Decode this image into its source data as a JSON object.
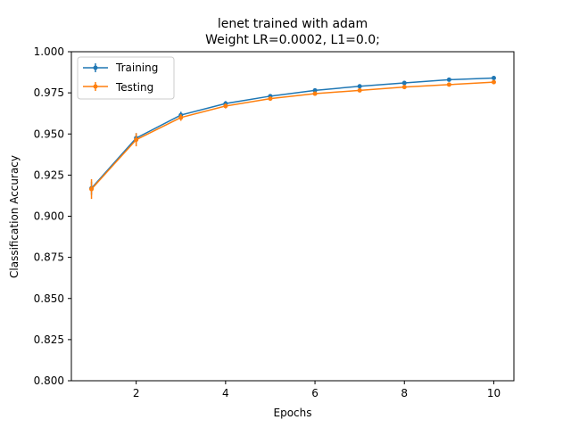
{
  "chart_data": {
    "type": "line",
    "title_line1": "lenet trained with adam",
    "title_line2": "Weight LR=0.0002, L1=0.0;",
    "xlabel": "Epochs",
    "ylabel": "Classification Accuracy",
    "xlim": [
      0.55,
      10.45
    ],
    "ylim": [
      0.8,
      1.0
    ],
    "xticks": [
      2,
      4,
      6,
      8,
      10
    ],
    "xtick_labels": [
      "2",
      "4",
      "6",
      "8",
      "10"
    ],
    "yticks": [
      0.8,
      0.825,
      0.85,
      0.875,
      0.9,
      0.925,
      0.95,
      0.975,
      1.0
    ],
    "ytick_labels": [
      "0.800",
      "0.825",
      "0.850",
      "0.875",
      "0.900",
      "0.925",
      "0.950",
      "0.975",
      "1.000"
    ],
    "grid": false,
    "legend_position": "upper-left",
    "x": [
      1,
      2,
      3,
      4,
      5,
      6,
      7,
      8,
      9,
      10
    ],
    "series": [
      {
        "name": "Training",
        "color": "#1f77b4",
        "values": [
          0.917,
          0.9475,
          0.9615,
          0.9685,
          0.973,
          0.9765,
          0.979,
          0.981,
          0.983,
          0.984
        ],
        "errors": [
          0.004,
          0.003,
          0.002,
          0.0015,
          0.001,
          0.001,
          0.001,
          0.001,
          0.001,
          0.001
        ]
      },
      {
        "name": "Testing",
        "color": "#ff7f0e",
        "values": [
          0.9165,
          0.9465,
          0.96,
          0.967,
          0.9715,
          0.9745,
          0.9765,
          0.9785,
          0.98,
          0.9815
        ],
        "errors": [
          0.006,
          0.004,
          0.002,
          0.0015,
          0.001,
          0.001,
          0.001,
          0.001,
          0.001,
          0.001
        ]
      }
    ]
  }
}
